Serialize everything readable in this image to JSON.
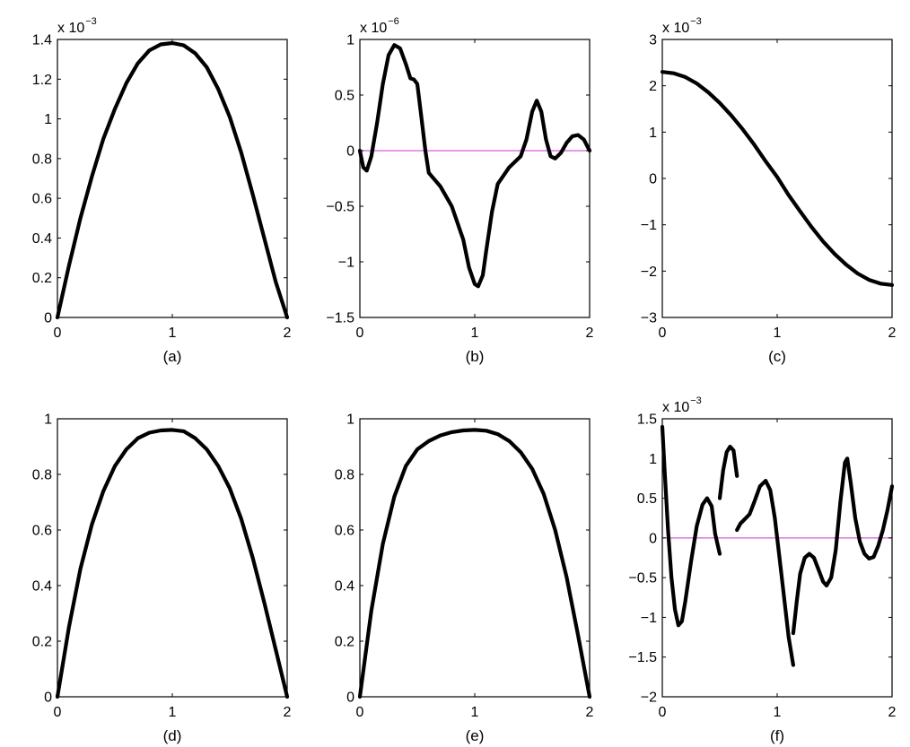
{
  "figure": {
    "ref_line_color": "#d65fd6",
    "curve_color": "#000000"
  },
  "chart_data": [
    {
      "type": "line",
      "caption": "(a)",
      "exponent": "x 10",
      "exponent_power": "−3",
      "xlim": [
        0,
        2
      ],
      "ylim": [
        0,
        1.4
      ],
      "xticks": [
        0,
        1,
        2
      ],
      "xtick_labels": [
        "0",
        "1",
        "2"
      ],
      "yticks": [
        0,
        0.2,
        0.4,
        0.6,
        0.8,
        1,
        1.2,
        1.4
      ],
      "ytick_labels": [
        "0",
        "0.2",
        "0.4",
        "0.6",
        "0.8",
        "1",
        "1.2",
        "1.4"
      ],
      "zero_line": false,
      "series": [
        {
          "segments": [
            [
              [
                0,
                0
              ],
              [
                0.1,
                0.26
              ],
              [
                0.2,
                0.5
              ],
              [
                0.3,
                0.71
              ],
              [
                0.4,
                0.9
              ],
              [
                0.5,
                1.05
              ],
              [
                0.6,
                1.18
              ],
              [
                0.7,
                1.28
              ],
              [
                0.8,
                1.345
              ],
              [
                0.9,
                1.375
              ],
              [
                1.0,
                1.382
              ],
              [
                1.1,
                1.37
              ],
              [
                1.2,
                1.33
              ],
              [
                1.3,
                1.26
              ],
              [
                1.4,
                1.15
              ],
              [
                1.5,
                1.01
              ],
              [
                1.6,
                0.83
              ],
              [
                1.7,
                0.62
              ],
              [
                1.8,
                0.4
              ],
              [
                1.9,
                0.18
              ],
              [
                2.0,
                0
              ]
            ]
          ]
        }
      ]
    },
    {
      "type": "line",
      "caption": "(b)",
      "exponent": "x 10",
      "exponent_power": "−6",
      "xlim": [
        0,
        2
      ],
      "ylim": [
        -1.5,
        1
      ],
      "xticks": [
        0,
        1,
        2
      ],
      "xtick_labels": [
        "0",
        "1",
        "2"
      ],
      "yticks": [
        -1.5,
        -1,
        -0.5,
        0,
        0.5,
        1
      ],
      "ytick_labels": [
        "−1.5",
        "−1",
        "−0.5",
        "0",
        "0.5",
        "1"
      ],
      "zero_line": true,
      "series": [
        {
          "segments": [
            [
              [
                0,
                0
              ],
              [
                0.03,
                -0.15
              ],
              [
                0.06,
                -0.18
              ],
              [
                0.1,
                -0.05
              ],
              [
                0.15,
                0.25
              ],
              [
                0.2,
                0.6
              ],
              [
                0.25,
                0.86
              ],
              [
                0.3,
                0.95
              ],
              [
                0.35,
                0.92
              ],
              [
                0.4,
                0.78
              ],
              [
                0.44,
                0.65
              ],
              [
                0.47,
                0.64
              ],
              [
                0.5,
                0.6
              ],
              [
                0.53,
                0.35
              ],
              [
                0.57,
                0.0
              ],
              [
                0.6,
                -0.2
              ],
              [
                0.65,
                -0.26
              ],
              [
                0.7,
                -0.32
              ],
              [
                0.8,
                -0.5
              ],
              [
                0.9,
                -0.8
              ],
              [
                0.95,
                -1.05
              ],
              [
                1.0,
                -1.2
              ],
              [
                1.03,
                -1.22
              ],
              [
                1.07,
                -1.12
              ],
              [
                1.1,
                -0.9
              ],
              [
                1.15,
                -0.55
              ],
              [
                1.2,
                -0.3
              ],
              [
                1.3,
                -0.15
              ],
              [
                1.4,
                -0.05
              ],
              [
                1.45,
                0.1
              ],
              [
                1.5,
                0.35
              ],
              [
                1.54,
                0.45
              ],
              [
                1.58,
                0.35
              ],
              [
                1.62,
                0.1
              ],
              [
                1.66,
                -0.05
              ],
              [
                1.7,
                -0.07
              ],
              [
                1.75,
                -0.02
              ],
              [
                1.8,
                0.07
              ],
              [
                1.85,
                0.13
              ],
              [
                1.9,
                0.14
              ],
              [
                1.95,
                0.1
              ],
              [
                2.0,
                0
              ]
            ]
          ]
        }
      ]
    },
    {
      "type": "line",
      "caption": "(c)",
      "exponent": "x 10",
      "exponent_power": "−3",
      "xlim": [
        0,
        2
      ],
      "ylim": [
        -3,
        3
      ],
      "xticks": [
        0,
        1,
        2
      ],
      "xtick_labels": [
        "0",
        "1",
        "2"
      ],
      "yticks": [
        -3,
        -2,
        -1,
        0,
        1,
        2,
        3
      ],
      "ytick_labels": [
        "−3",
        "−2",
        "−1",
        "0",
        "1",
        "2",
        "3"
      ],
      "zero_line": false,
      "series": [
        {
          "segments": [
            [
              [
                0,
                2.3
              ],
              [
                0.1,
                2.27
              ],
              [
                0.2,
                2.19
              ],
              [
                0.3,
                2.05
              ],
              [
                0.4,
                1.86
              ],
              [
                0.5,
                1.63
              ],
              [
                0.6,
                1.36
              ],
              [
                0.7,
                1.06
              ],
              [
                0.8,
                0.73
              ],
              [
                0.9,
                0.37
              ],
              [
                1.0,
                0.03
              ],
              [
                1.1,
                -0.36
              ],
              [
                1.2,
                -0.71
              ],
              [
                1.3,
                -1.05
              ],
              [
                1.4,
                -1.36
              ],
              [
                1.5,
                -1.63
              ],
              [
                1.6,
                -1.86
              ],
              [
                1.7,
                -2.05
              ],
              [
                1.8,
                -2.19
              ],
              [
                1.9,
                -2.27
              ],
              [
                2.0,
                -2.3
              ]
            ]
          ]
        }
      ]
    },
    {
      "type": "line",
      "caption": "(d)",
      "exponent": "",
      "exponent_power": "",
      "xlim": [
        0,
        2
      ],
      "ylim": [
        0,
        1
      ],
      "xticks": [
        0,
        1,
        2
      ],
      "xtick_labels": [
        "0",
        "1",
        "2"
      ],
      "yticks": [
        0,
        0.2,
        0.4,
        0.6,
        0.8,
        1
      ],
      "ytick_labels": [
        "0",
        "0.2",
        "0.4",
        "0.6",
        "0.8",
        "1"
      ],
      "zero_line": false,
      "series": [
        {
          "segments": [
            [
              [
                0,
                0
              ],
              [
                0.1,
                0.25
              ],
              [
                0.2,
                0.46
              ],
              [
                0.3,
                0.62
              ],
              [
                0.4,
                0.74
              ],
              [
                0.5,
                0.83
              ],
              [
                0.6,
                0.89
              ],
              [
                0.7,
                0.93
              ],
              [
                0.8,
                0.95
              ],
              [
                0.9,
                0.958
              ],
              [
                1.0,
                0.96
              ],
              [
                1.1,
                0.955
              ],
              [
                1.2,
                0.93
              ],
              [
                1.3,
                0.89
              ],
              [
                1.4,
                0.83
              ],
              [
                1.5,
                0.75
              ],
              [
                1.6,
                0.64
              ],
              [
                1.7,
                0.5
              ],
              [
                1.8,
                0.34
              ],
              [
                1.9,
                0.17
              ],
              [
                2.0,
                0
              ]
            ]
          ]
        }
      ]
    },
    {
      "type": "line",
      "caption": "(e)",
      "exponent": "",
      "exponent_power": "",
      "xlim": [
        0,
        2
      ],
      "ylim": [
        0,
        1
      ],
      "xticks": [
        0,
        1,
        2
      ],
      "xtick_labels": [
        "0",
        "1",
        "2"
      ],
      "yticks": [
        0,
        0.2,
        0.4,
        0.6,
        0.8,
        1
      ],
      "ytick_labels": [
        "0",
        "0.2",
        "0.4",
        "0.6",
        "0.8",
        "1"
      ],
      "zero_line": false,
      "series": [
        {
          "segments": [
            [
              [
                0,
                0
              ],
              [
                0.1,
                0.31
              ],
              [
                0.2,
                0.55
              ],
              [
                0.3,
                0.72
              ],
              [
                0.4,
                0.83
              ],
              [
                0.5,
                0.89
              ],
              [
                0.6,
                0.92
              ],
              [
                0.7,
                0.94
              ],
              [
                0.8,
                0.952
              ],
              [
                0.9,
                0.958
              ],
              [
                1.0,
                0.96
              ],
              [
                1.1,
                0.957
              ],
              [
                1.2,
                0.945
              ],
              [
                1.3,
                0.92
              ],
              [
                1.4,
                0.88
              ],
              [
                1.5,
                0.82
              ],
              [
                1.6,
                0.73
              ],
              [
                1.7,
                0.6
              ],
              [
                1.8,
                0.43
              ],
              [
                1.9,
                0.22
              ],
              [
                2.0,
                0
              ]
            ]
          ]
        }
      ]
    },
    {
      "type": "line",
      "caption": "(f)",
      "exponent": "x 10",
      "exponent_power": "−3",
      "xlim": [
        0,
        2
      ],
      "ylim": [
        -2,
        1.5
      ],
      "xticks": [
        0,
        1,
        2
      ],
      "xtick_labels": [
        "0",
        "1",
        "2"
      ],
      "yticks": [
        -2,
        -1.5,
        -1,
        -0.5,
        0,
        0.5,
        1,
        1.5
      ],
      "ytick_labels": [
        "−2",
        "−1.5",
        "−1",
        "−0.5",
        "0",
        "0.5",
        "1",
        "1.5"
      ],
      "zero_line": true,
      "series": [
        {
          "segments": [
            [
              [
                0,
                1.4
              ],
              [
                0.02,
                0.85
              ],
              [
                0.05,
                0.1
              ],
              [
                0.08,
                -0.5
              ],
              [
                0.11,
                -0.9
              ],
              [
                0.14,
                -1.1
              ],
              [
                0.17,
                -1.05
              ],
              [
                0.2,
                -0.8
              ],
              [
                0.25,
                -0.3
              ],
              [
                0.3,
                0.15
              ],
              [
                0.35,
                0.42
              ],
              [
                0.39,
                0.5
              ],
              [
                0.43,
                0.4
              ],
              [
                0.46,
                0.05
              ],
              [
                0.5,
                -0.2
              ]
            ],
            [
              [
                0.5,
                0.5
              ],
              [
                0.53,
                0.85
              ],
              [
                0.56,
                1.08
              ],
              [
                0.59,
                1.15
              ],
              [
                0.62,
                1.1
              ],
              [
                0.65,
                0.78
              ]
            ],
            [
              [
                0.65,
                0.1
              ],
              [
                0.68,
                0.18
              ],
              [
                0.72,
                0.24
              ],
              [
                0.76,
                0.3
              ],
              [
                0.8,
                0.45
              ],
              [
                0.85,
                0.65
              ],
              [
                0.9,
                0.72
              ],
              [
                0.94,
                0.6
              ],
              [
                0.98,
                0.25
              ],
              [
                1.02,
                -0.25
              ],
              [
                1.06,
                -0.75
              ],
              [
                1.1,
                -1.25
              ],
              [
                1.14,
                -1.6
              ]
            ],
            [
              [
                1.14,
                -1.2
              ],
              [
                1.17,
                -0.8
              ],
              [
                1.2,
                -0.45
              ],
              [
                1.24,
                -0.25
              ],
              [
                1.28,
                -0.2
              ],
              [
                1.32,
                -0.25
              ],
              [
                1.36,
                -0.4
              ],
              [
                1.4,
                -0.55
              ],
              [
                1.43,
                -0.6
              ],
              [
                1.47,
                -0.5
              ],
              [
                1.51,
                -0.15
              ],
              [
                1.55,
                0.45
              ],
              [
                1.59,
                0.95
              ],
              [
                1.61,
                1.0
              ],
              [
                1.64,
                0.7
              ],
              [
                1.68,
                0.25
              ],
              [
                1.72,
                -0.05
              ],
              [
                1.76,
                -0.2
              ],
              [
                1.8,
                -0.26
              ],
              [
                1.84,
                -0.24
              ],
              [
                1.88,
                -0.1
              ],
              [
                1.92,
                0.1
              ],
              [
                1.96,
                0.35
              ],
              [
                2.0,
                0.65
              ]
            ]
          ]
        }
      ]
    }
  ]
}
